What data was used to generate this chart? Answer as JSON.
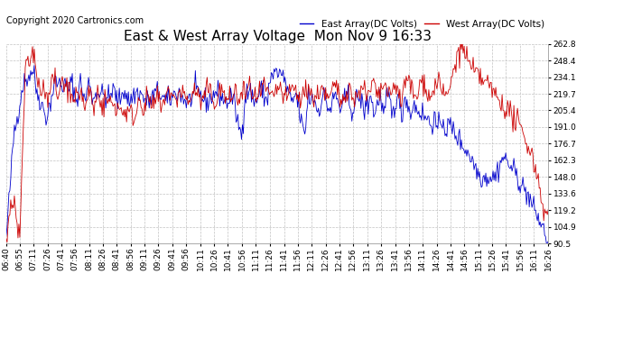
{
  "title": "East & West Array Voltage  Mon Nov 9 16:33",
  "copyright": "Copyright 2020 Cartronics.com",
  "legend_east": "East Array(DC Volts)",
  "legend_west": "West Array(DC Volts)",
  "east_color": "#0000CC",
  "west_color": "#CC0000",
  "bg_color": "#FFFFFF",
  "plot_bg_color": "#FFFFFF",
  "grid_color": "#BBBBBB",
  "ymin": 90.5,
  "ymax": 262.8,
  "yticks": [
    90.5,
    104.9,
    119.2,
    133.6,
    148.0,
    162.3,
    176.7,
    191.0,
    205.4,
    219.7,
    234.1,
    248.4,
    262.8
  ],
  "xtick_labels": [
    "06:40",
    "06:55",
    "07:11",
    "07:26",
    "07:41",
    "07:56",
    "08:11",
    "08:26",
    "08:41",
    "08:56",
    "09:11",
    "09:26",
    "09:41",
    "09:56",
    "10:11",
    "10:26",
    "10:41",
    "10:56",
    "11:11",
    "11:26",
    "11:41",
    "11:56",
    "12:11",
    "12:26",
    "12:41",
    "12:56",
    "13:11",
    "13:26",
    "13:41",
    "13:56",
    "14:11",
    "14:26",
    "14:41",
    "14:56",
    "15:11",
    "15:26",
    "15:41",
    "15:56",
    "16:11",
    "16:26"
  ],
  "title_fontsize": 11,
  "legend_fontsize": 7.5,
  "copyright_fontsize": 7,
  "tick_fontsize": 6.5
}
